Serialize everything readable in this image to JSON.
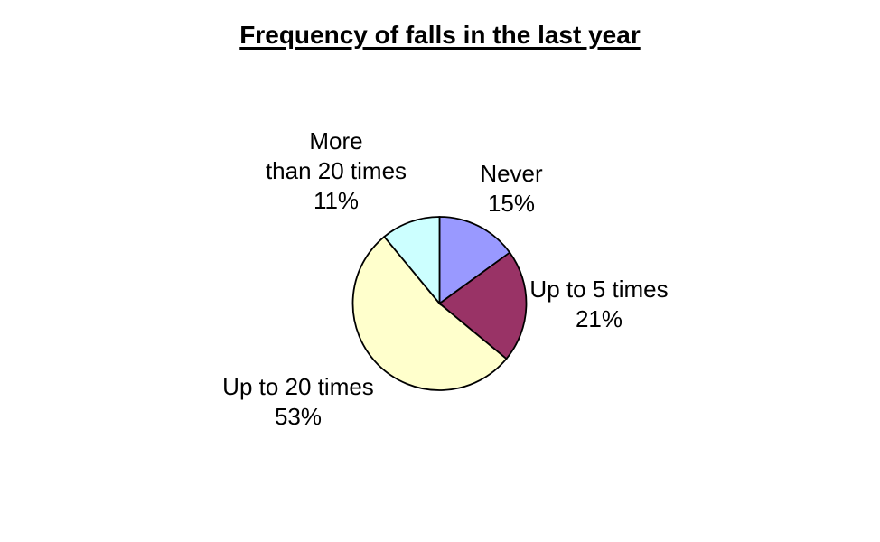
{
  "chart_data": {
    "type": "pie",
    "title": "Frequency of falls in the last year",
    "unit": "%",
    "start_angle_deg": 0,
    "direction": "clockwise",
    "slices": [
      {
        "label": "Never",
        "value": 15,
        "color": "#9999FF"
      },
      {
        "label": "Up to 5 times",
        "value": 21,
        "color": "#993366"
      },
      {
        "label": "Up to 20 times",
        "value": 53,
        "color": "#FFFFCC"
      },
      {
        "label": "More than 20 times",
        "value": 11,
        "color": "#CCFFFF"
      }
    ],
    "outline_color": "#000000",
    "background": "#FFFFFF",
    "legend": "none",
    "labels_style": "category name and percent outside slices"
  },
  "callouts": [
    {
      "lines": [
        "More",
        "than 20 times",
        "11%"
      ]
    },
    {
      "lines": [
        "Never",
        "15%"
      ]
    },
    {
      "lines": [
        "Up to 5 times",
        "21%"
      ]
    },
    {
      "lines": [
        "Up to 20 times",
        "53%"
      ]
    }
  ]
}
